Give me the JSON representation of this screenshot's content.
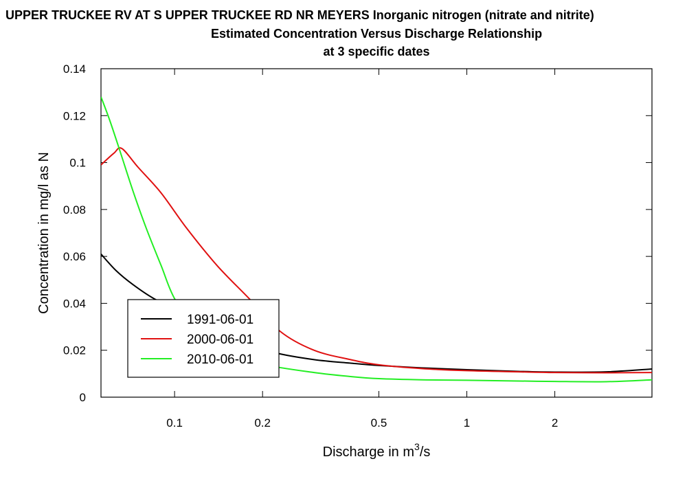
{
  "chart_data": {
    "type": "line",
    "title": "UPPER TRUCKEE RV AT S UPPER TRUCKEE RD NR MEYERS    Inorganic nitrogen (nitrate and nitrite)",
    "subtitle": "Estimated Concentration Versus Discharge Relationship",
    "subtitle2": "at 3 specific dates",
    "xlabel_prefix": "Discharge in m",
    "xlabel_sup": "3",
    "xlabel_suffix": "/s",
    "ylabel": "Concentration in mg/l as N",
    "xscale": "log",
    "xlim": [
      0.056,
      4.3
    ],
    "ylim": [
      0,
      0.14
    ],
    "xticks": [
      {
        "value": 0.1,
        "label": "0.1"
      },
      {
        "value": 0.2,
        "label": "0.2"
      },
      {
        "value": 0.5,
        "label": "0.5"
      },
      {
        "value": 1,
        "label": "1"
      },
      {
        "value": 2,
        "label": "2"
      }
    ],
    "yticks": [
      {
        "value": 0,
        "label": "0"
      },
      {
        "value": 0.02,
        "label": "0.02"
      },
      {
        "value": 0.04,
        "label": "0.04"
      },
      {
        "value": 0.06,
        "label": "0.06"
      },
      {
        "value": 0.08,
        "label": "0.08"
      },
      {
        "value": 0.1,
        "label": "0.1"
      },
      {
        "value": 0.12,
        "label": "0.12"
      },
      {
        "value": 0.14,
        "label": "0.14"
      }
    ],
    "legend_position": "lower-left",
    "series": [
      {
        "name": "1991-06-01",
        "color": "#000000",
        "x": [
          0.056,
          0.063,
          0.072,
          0.085,
          0.1,
          0.13,
          0.17,
          0.22,
          0.3,
          0.4,
          0.5,
          0.7,
          1.0,
          1.5,
          2.0,
          3.0,
          4.3
        ],
        "y": [
          0.061,
          0.054,
          0.048,
          0.042,
          0.038,
          0.029,
          0.024,
          0.019,
          0.016,
          0.0145,
          0.0135,
          0.0125,
          0.0117,
          0.011,
          0.0107,
          0.0108,
          0.012
        ]
      },
      {
        "name": "2000-06-01",
        "color": "#e01010",
        "x": [
          0.056,
          0.062,
          0.066,
          0.075,
          0.09,
          0.11,
          0.14,
          0.18,
          0.23,
          0.3,
          0.4,
          0.5,
          0.7,
          1.0,
          1.5,
          2.0,
          3.0,
          4.3
        ],
        "y": [
          0.099,
          0.104,
          0.106,
          0.098,
          0.087,
          0.072,
          0.056,
          0.042,
          0.028,
          0.02,
          0.016,
          0.0138,
          0.0122,
          0.0113,
          0.0108,
          0.0105,
          0.0104,
          0.0105
        ]
      },
      {
        "name": "2010-06-01",
        "color": "#22ee22",
        "x": [
          0.056,
          0.06,
          0.065,
          0.072,
          0.08,
          0.09,
          0.1,
          0.12,
          0.15,
          0.2,
          0.3,
          0.4,
          0.5,
          0.7,
          1.0,
          1.5,
          2.0,
          3.0,
          4.3
        ],
        "y": [
          0.128,
          0.118,
          0.105,
          0.088,
          0.072,
          0.056,
          0.042,
          0.028,
          0.019,
          0.014,
          0.0105,
          0.0088,
          0.0079,
          0.0074,
          0.0072,
          0.0069,
          0.0067,
          0.0066,
          0.0074
        ]
      }
    ]
  }
}
